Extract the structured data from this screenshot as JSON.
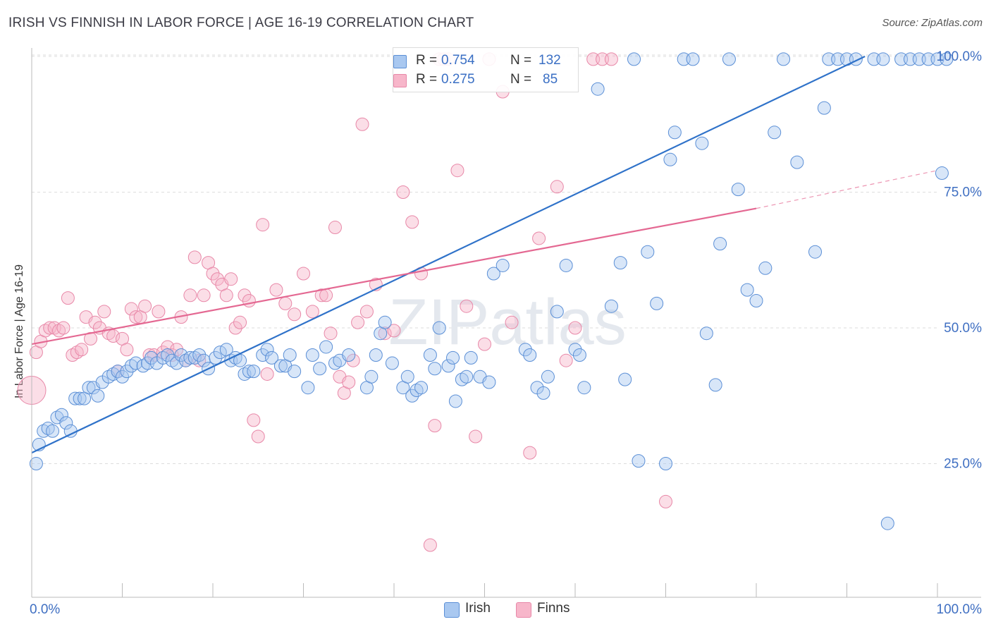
{
  "title": "IRISH VS FINNISH IN LABOR FORCE | AGE 16-19 CORRELATION CHART",
  "source": "Source: ZipAtlas.com",
  "watermark": "ZIPatlas",
  "legend": {
    "irish": {
      "r_label": "R =",
      "r_value": "0.754",
      "n_label": "N =",
      "n_value": "132"
    },
    "finns": {
      "r_label": "R =",
      "r_value": "0.275",
      "n_label": "N =",
      "n_value": "85"
    }
  },
  "bottom_legend": {
    "irish": "Irish",
    "finns": "Finns"
  },
  "colors": {
    "irish_fill": "#a9c8f0",
    "irish_stroke": "#5b8fd6",
    "irish_line": "#2f72c9",
    "finns_fill": "#f7b6ca",
    "finns_stroke": "#e888a8",
    "finns_line": "#e46892",
    "axis_text": "#3f6fc2",
    "grid": "#dddddd"
  },
  "chart_data": {
    "type": "scatter",
    "title": "IRISH VS FINNISH IN LABOR FORCE | AGE 16-19 CORRELATION CHART",
    "xlabel": "",
    "ylabel": "In Labor Force | Age 16-19",
    "xlim": [
      0,
      100
    ],
    "ylim": [
      0,
      102
    ],
    "x_tick_labels": [
      "0.0%",
      "100.0%"
    ],
    "y_ticks": [
      25,
      50,
      75,
      100
    ],
    "y_tick_labels": [
      "25.0%",
      "50.0%",
      "75.0%",
      "100.0%"
    ],
    "series": [
      {
        "name": "Irish",
        "trend": {
          "x": [
            0,
            92
          ],
          "y": [
            27,
            100
          ],
          "dashed_to": null
        },
        "points": [
          [
            0.5,
            25
          ],
          [
            0.8,
            28.5
          ],
          [
            1.3,
            31
          ],
          [
            1.8,
            31.5
          ],
          [
            2.3,
            31
          ],
          [
            2.8,
            33.5
          ],
          [
            3.3,
            34
          ],
          [
            3.8,
            32.5
          ],
          [
            4.3,
            31
          ],
          [
            4.8,
            37
          ],
          [
            5.3,
            37
          ],
          [
            5.8,
            37
          ],
          [
            6.3,
            39
          ],
          [
            6.8,
            39
          ],
          [
            7.3,
            37.5
          ],
          [
            7.8,
            40
          ],
          [
            8.5,
            41
          ],
          [
            9.0,
            41.5
          ],
          [
            9.5,
            42
          ],
          [
            10,
            41
          ],
          [
            10.5,
            42
          ],
          [
            11,
            43
          ],
          [
            11.5,
            43.5
          ],
          [
            12.3,
            43
          ],
          [
            12.8,
            43.5
          ],
          [
            13.2,
            44.5
          ],
          [
            13.8,
            43.5
          ],
          [
            14.5,
            44.5
          ],
          [
            15,
            45
          ],
          [
            15.5,
            44
          ],
          [
            16,
            43.5
          ],
          [
            16.5,
            45
          ],
          [
            17,
            44
          ],
          [
            17.5,
            44.5
          ],
          [
            18,
            44.5
          ],
          [
            18.5,
            45
          ],
          [
            19,
            44
          ],
          [
            19.5,
            42.5
          ],
          [
            20.3,
            44.5
          ],
          [
            20.8,
            45.5
          ],
          [
            21.5,
            46
          ],
          [
            22,
            44
          ],
          [
            22.5,
            44.5
          ],
          [
            23,
            44
          ],
          [
            23.5,
            41.5
          ],
          [
            24,
            42
          ],
          [
            24.5,
            42
          ],
          [
            25.5,
            45
          ],
          [
            26,
            46
          ],
          [
            26.5,
            44.5
          ],
          [
            27.5,
            43
          ],
          [
            28,
            43
          ],
          [
            28.5,
            45
          ],
          [
            29,
            42
          ],
          [
            30.5,
            39
          ],
          [
            31,
            45
          ],
          [
            31.8,
            42.5
          ],
          [
            32.5,
            46.5
          ],
          [
            33.5,
            43.5
          ],
          [
            34,
            44
          ],
          [
            35,
            45
          ],
          [
            37,
            39
          ],
          [
            37.5,
            41
          ],
          [
            38,
            45
          ],
          [
            38.5,
            49
          ],
          [
            39,
            51
          ],
          [
            39.8,
            43.5
          ],
          [
            41,
            39
          ],
          [
            41.5,
            41
          ],
          [
            42,
            37.5
          ],
          [
            42.5,
            38.5
          ],
          [
            43,
            39
          ],
          [
            44,
            45
          ],
          [
            44.5,
            42.5
          ],
          [
            45,
            50
          ],
          [
            46,
            43
          ],
          [
            46.5,
            44.5
          ],
          [
            46.8,
            36.5
          ],
          [
            47.5,
            40.5
          ],
          [
            48,
            41
          ],
          [
            48.5,
            44.5
          ],
          [
            49.5,
            41
          ],
          [
            50.5,
            40
          ],
          [
            51,
            60
          ],
          [
            52,
            61.5
          ],
          [
            54.5,
            46
          ],
          [
            55,
            45
          ],
          [
            55.8,
            39
          ],
          [
            56.5,
            38
          ],
          [
            57,
            41
          ],
          [
            58,
            53
          ],
          [
            59,
            61.5
          ],
          [
            60,
            46
          ],
          [
            60.5,
            45
          ],
          [
            61,
            39
          ],
          [
            62.5,
            94
          ],
          [
            64,
            54
          ],
          [
            65,
            62
          ],
          [
            65.5,
            40.5
          ],
          [
            66.5,
            99.5
          ],
          [
            67,
            25.5
          ],
          [
            68,
            64
          ],
          [
            69,
            54.5
          ],
          [
            70,
            25
          ],
          [
            70.5,
            81
          ],
          [
            71,
            86
          ],
          [
            72,
            99.5
          ],
          [
            73,
            99.5
          ],
          [
            74,
            84
          ],
          [
            74.5,
            49
          ],
          [
            75.5,
            39.5
          ],
          [
            76,
            65.5
          ],
          [
            77,
            99.5
          ],
          [
            78,
            75.5
          ],
          [
            79,
            57
          ],
          [
            80,
            55
          ],
          [
            81,
            61
          ],
          [
            82,
            86
          ],
          [
            83,
            99.5
          ],
          [
            84.5,
            80.5
          ],
          [
            86.5,
            64
          ],
          [
            87.5,
            90.5
          ],
          [
            88,
            99.5
          ],
          [
            89,
            99.5
          ],
          [
            90,
            99.5
          ],
          [
            91,
            99.5
          ],
          [
            93,
            99.5
          ],
          [
            94,
            99.5
          ],
          [
            94.5,
            14
          ],
          [
            96,
            99.5
          ],
          [
            97,
            99.5
          ],
          [
            98,
            99.5
          ],
          [
            99,
            99.5
          ],
          [
            100,
            99.5
          ],
          [
            100.5,
            78.5
          ],
          [
            101,
            99.5
          ]
        ]
      },
      {
        "name": "Finns",
        "trend": {
          "x": [
            0,
            80
          ],
          "y": [
            47,
            72
          ],
          "dashed_to": [
            100,
            79
          ]
        },
        "points": [
          [
            0,
            38.5
          ],
          [
            0.5,
            45.5
          ],
          [
            1,
            47.5
          ],
          [
            1.5,
            49.5
          ],
          [
            2,
            50
          ],
          [
            2.5,
            50
          ],
          [
            3,
            49.5
          ],
          [
            3.5,
            50
          ],
          [
            4,
            55.5
          ],
          [
            4.5,
            45
          ],
          [
            5,
            45.5
          ],
          [
            5.5,
            46
          ],
          [
            6,
            52
          ],
          [
            6.5,
            48
          ],
          [
            7,
            51
          ],
          [
            7.5,
            50
          ],
          [
            8,
            53
          ],
          [
            8.5,
            49
          ],
          [
            9,
            48.5
          ],
          [
            9.5,
            42
          ],
          [
            10,
            48
          ],
          [
            10.5,
            46
          ],
          [
            11,
            53.5
          ],
          [
            11.5,
            52
          ],
          [
            12,
            52
          ],
          [
            12.5,
            54
          ],
          [
            13,
            45
          ],
          [
            13.5,
            45
          ],
          [
            14,
            53
          ],
          [
            14.5,
            45.5
          ],
          [
            15,
            46.5
          ],
          [
            15.5,
            45
          ],
          [
            16,
            46
          ],
          [
            16.5,
            52
          ],
          [
            17,
            44
          ],
          [
            17.5,
            56
          ],
          [
            18,
            63
          ],
          [
            18.5,
            44
          ],
          [
            19,
            56
          ],
          [
            19.5,
            62
          ],
          [
            20,
            60
          ],
          [
            20.5,
            59
          ],
          [
            21,
            58
          ],
          [
            21.5,
            56
          ],
          [
            22,
            59
          ],
          [
            22.5,
            50
          ],
          [
            23,
            51
          ],
          [
            23.5,
            56
          ],
          [
            24,
            55
          ],
          [
            24.5,
            33
          ],
          [
            25,
            30
          ],
          [
            25.5,
            69
          ],
          [
            26,
            41.5
          ],
          [
            27,
            57
          ],
          [
            28,
            54.5
          ],
          [
            29,
            52.5
          ],
          [
            30,
            60
          ],
          [
            31,
            53
          ],
          [
            32,
            56
          ],
          [
            32.5,
            56
          ],
          [
            33,
            49
          ],
          [
            33.5,
            68.5
          ],
          [
            34,
            41
          ],
          [
            34.5,
            38
          ],
          [
            35,
            40
          ],
          [
            35.5,
            44
          ],
          [
            36,
            51
          ],
          [
            36.5,
            87.5
          ],
          [
            37,
            53
          ],
          [
            38,
            58
          ],
          [
            39,
            49
          ],
          [
            40,
            49.5
          ],
          [
            41,
            75
          ],
          [
            42,
            69.5
          ],
          [
            43,
            60
          ],
          [
            44,
            10
          ],
          [
            44.5,
            32
          ],
          [
            45,
            99.5
          ],
          [
            45.5,
            99.5
          ],
          [
            46,
            99.5
          ],
          [
            47,
            79
          ],
          [
            48,
            54
          ],
          [
            49,
            30
          ],
          [
            50,
            47
          ],
          [
            50.5,
            99.5
          ],
          [
            52,
            93.5
          ],
          [
            53,
            51
          ],
          [
            55,
            27
          ],
          [
            56,
            66.5
          ],
          [
            58,
            76
          ],
          [
            59,
            44
          ],
          [
            60,
            50
          ],
          [
            62,
            99.5
          ],
          [
            63,
            99.5
          ],
          [
            64,
            99.5
          ],
          [
            70,
            18
          ]
        ]
      }
    ]
  }
}
